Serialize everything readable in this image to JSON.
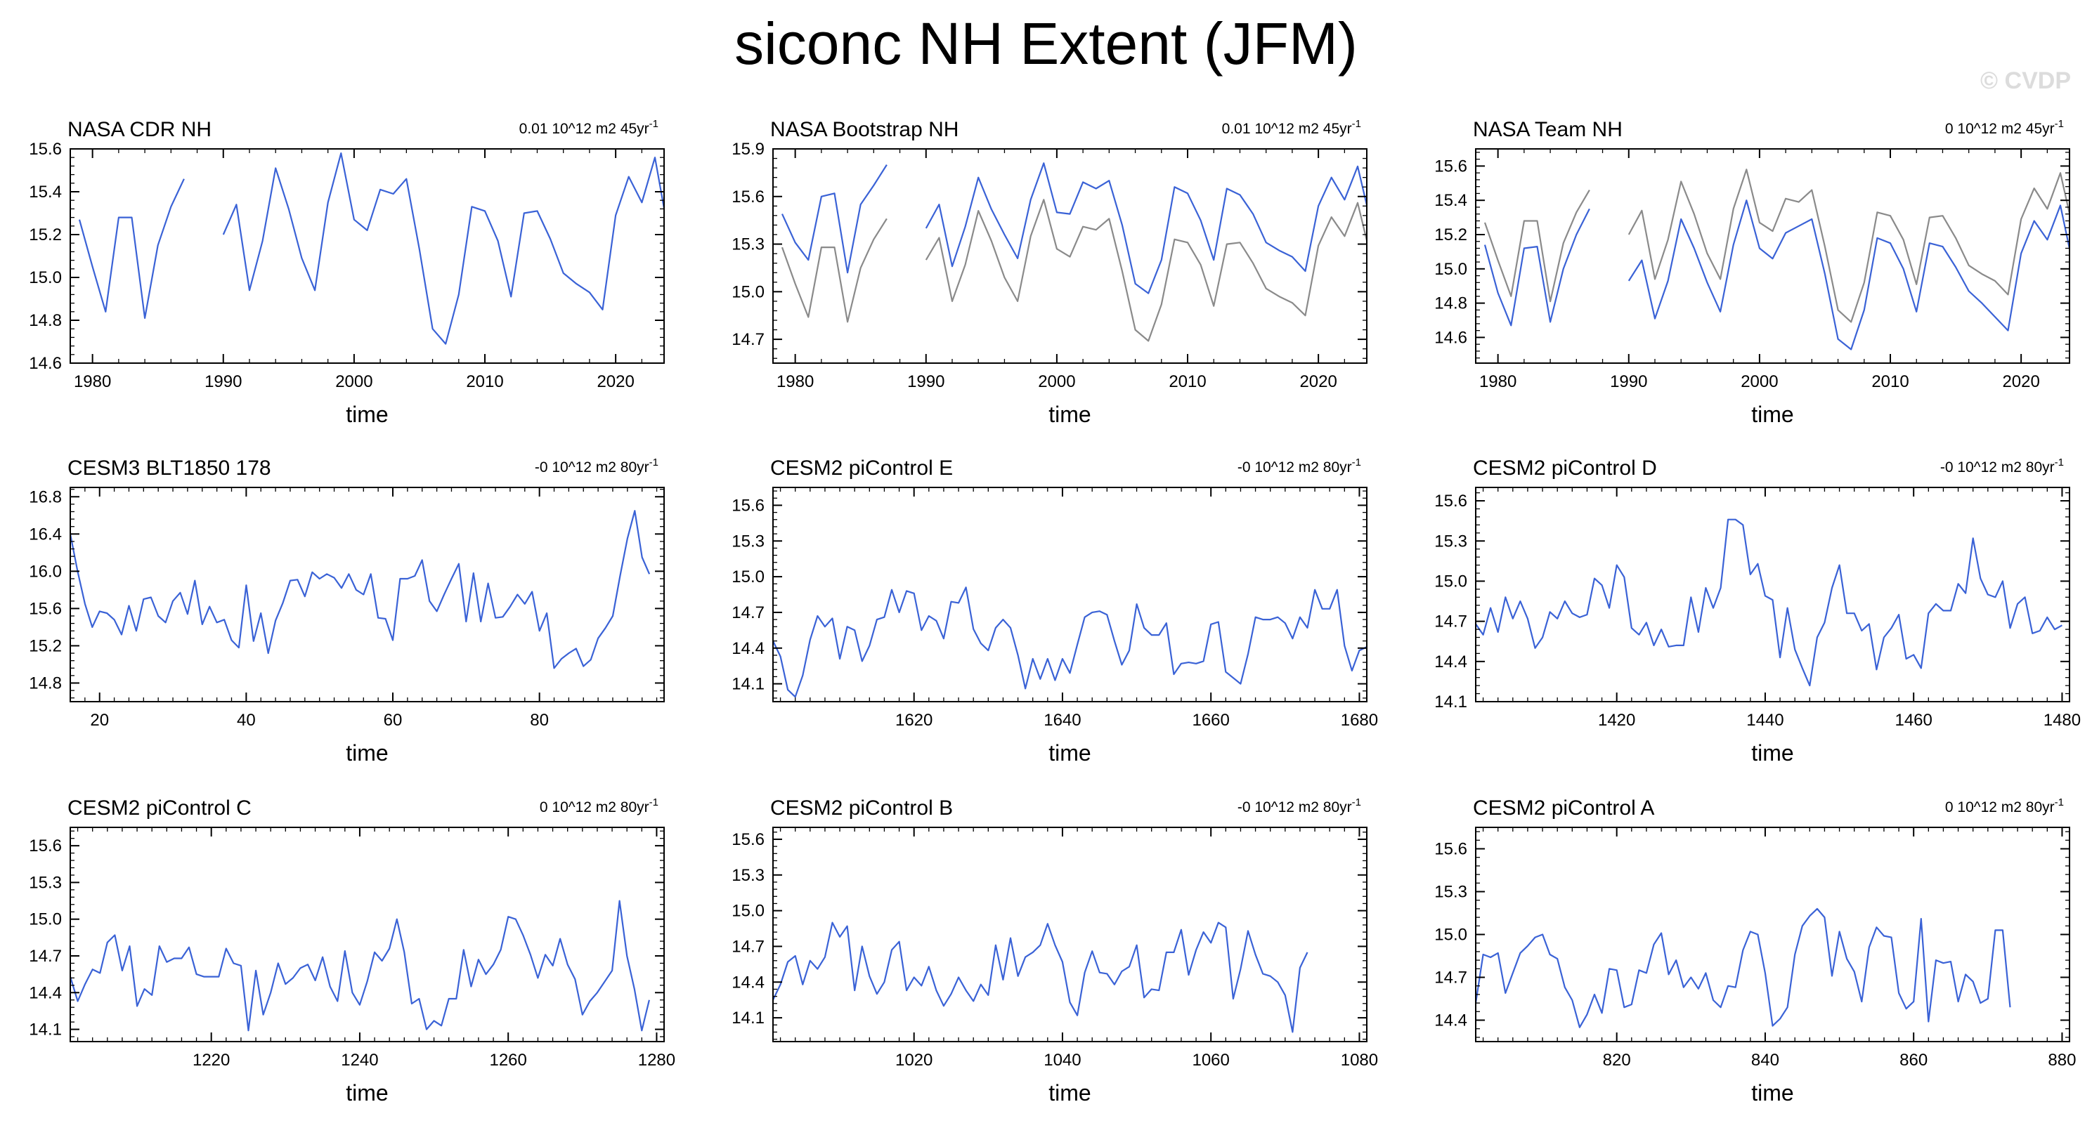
{
  "figure": {
    "title": "siconc NH Extent (JFM)",
    "watermark": "© CVDP"
  },
  "colors": {
    "model": "#3a62d6",
    "obs": "#8a8a8a",
    "axis": "#000000"
  },
  "chart_data": [
    {
      "type": "line",
      "title": "NASA CDR NH",
      "trend_label": "0.01 10^12 m2 45yr",
      "trend_sup": "-1",
      "xlabel": "time",
      "xlim": [
        1978.3,
        2023.7
      ],
      "ylim": [
        14.6,
        15.6
      ],
      "xticks": [
        1980,
        1990,
        2000,
        2010,
        2020
      ],
      "yticks": [
        14.6,
        14.8,
        15.0,
        15.2,
        15.4,
        15.6
      ],
      "ytick_labels": [
        "14.6",
        "14.8",
        "15.0",
        "15.2",
        "15.4",
        "15.6"
      ],
      "x_start": 1979,
      "series": [
        {
          "role": "model",
          "values": [
            15.27,
            15.05,
            14.84,
            15.28,
            15.28,
            14.81,
            15.15,
            15.33,
            15.46,
            null,
            null,
            15.2,
            15.34,
            14.94,
            15.17,
            15.51,
            15.32,
            15.09,
            14.94,
            15.35,
            15.58,
            15.27,
            15.22,
            15.41,
            15.39,
            15.46,
            15.13,
            14.76,
            14.69,
            14.92,
            15.33,
            15.31,
            15.17,
            14.91,
            15.3,
            15.31,
            15.18,
            15.02,
            14.97,
            14.93,
            14.85,
            15.29,
            15.47,
            15.35,
            15.56,
            15.22
          ]
        }
      ]
    },
    {
      "type": "line",
      "title": "NASA Bootstrap NH",
      "trend_label": "0.01 10^12 m2 45yr",
      "trend_sup": "-1",
      "xlabel": "time",
      "xlim": [
        1978.3,
        2023.7
      ],
      "ylim": [
        14.55,
        15.9
      ],
      "xticks": [
        1980,
        1990,
        2000,
        2010,
        2020
      ],
      "yticks": [
        14.7,
        15.0,
        15.3,
        15.6,
        15.9
      ],
      "ytick_labels": [
        "14.7",
        "15.0",
        "15.3",
        "15.6",
        "15.9"
      ],
      "x_start": 1979,
      "series": [
        {
          "role": "model",
          "values": [
            15.49,
            15.31,
            15.2,
            15.6,
            15.62,
            15.12,
            15.55,
            15.67,
            15.8,
            null,
            null,
            15.4,
            15.55,
            15.16,
            15.41,
            15.72,
            15.52,
            15.36,
            15.21,
            15.58,
            15.81,
            15.5,
            15.49,
            15.69,
            15.65,
            15.7,
            15.42,
            15.05,
            14.99,
            15.2,
            15.66,
            15.62,
            15.45,
            15.2,
            15.65,
            15.61,
            15.49,
            15.31,
            15.26,
            15.22,
            15.13,
            15.54,
            15.72,
            15.58,
            15.79,
            15.44
          ]
        },
        {
          "role": "obs",
          "values": [
            15.28,
            15.05,
            14.84,
            15.28,
            15.28,
            14.81,
            15.15,
            15.33,
            15.46,
            null,
            null,
            15.2,
            15.34,
            14.94,
            15.17,
            15.51,
            15.32,
            15.09,
            14.94,
            15.35,
            15.58,
            15.27,
            15.22,
            15.41,
            15.39,
            15.46,
            15.13,
            14.76,
            14.69,
            14.92,
            15.33,
            15.31,
            15.17,
            14.91,
            15.3,
            15.31,
            15.18,
            15.02,
            14.97,
            14.93,
            14.85,
            15.29,
            15.47,
            15.35,
            15.56,
            15.22
          ]
        }
      ]
    },
    {
      "type": "line",
      "title": "NASA Team NH",
      "trend_label": "0 10^12 m2 45yr",
      "trend_sup": "-1",
      "xlabel": "time",
      "xlim": [
        1978.3,
        2023.7
      ],
      "ylim": [
        14.45,
        15.7
      ],
      "xticks": [
        1980,
        1990,
        2000,
        2010,
        2020
      ],
      "yticks": [
        14.6,
        14.8,
        15.0,
        15.2,
        15.4,
        15.6
      ],
      "ytick_labels": [
        "14.6",
        "14.8",
        "15.0",
        "15.2",
        "15.4",
        "15.6"
      ],
      "x_start": 1979,
      "series": [
        {
          "role": "model",
          "values": [
            15.14,
            14.86,
            14.67,
            15.12,
            15.13,
            14.69,
            15.0,
            15.2,
            15.35,
            null,
            null,
            14.93,
            15.05,
            14.71,
            14.93,
            15.29,
            15.12,
            14.92,
            14.75,
            15.14,
            15.4,
            15.12,
            15.06,
            15.21,
            15.25,
            15.29,
            14.97,
            14.59,
            14.53,
            14.76,
            15.18,
            15.15,
            15.0,
            14.75,
            15.15,
            15.13,
            15.01,
            14.87,
            14.8,
            14.72,
            14.64,
            15.09,
            15.28,
            15.17,
            15.37,
            15.01
          ]
        },
        {
          "role": "obs",
          "values": [
            15.27,
            15.05,
            14.84,
            15.28,
            15.28,
            14.81,
            15.15,
            15.33,
            15.46,
            null,
            null,
            15.2,
            15.34,
            14.94,
            15.17,
            15.51,
            15.32,
            15.09,
            14.94,
            15.35,
            15.58,
            15.27,
            15.22,
            15.41,
            15.39,
            15.46,
            15.13,
            14.76,
            14.69,
            14.92,
            15.33,
            15.31,
            15.17,
            14.91,
            15.3,
            15.31,
            15.18,
            15.02,
            14.97,
            14.93,
            14.85,
            15.29,
            15.47,
            15.35,
            15.56,
            15.22
          ]
        }
      ]
    },
    {
      "type": "line",
      "title": "CESM3 BLT1850 178",
      "trend_label": "-0 10^12 m2 80yr",
      "trend_sup": "-1",
      "xlabel": "time",
      "xlim": [
        16,
        97
      ],
      "ylim": [
        14.6,
        16.9
      ],
      "xticks": [
        20,
        40,
        60,
        80
      ],
      "yticks": [
        14.8,
        15.2,
        15.6,
        16.0,
        16.4,
        16.8
      ],
      "ytick_labels": [
        "14.8",
        "15.2",
        "15.6",
        "16.0",
        "16.4",
        "16.8"
      ],
      "x_start": 16,
      "series": [
        {
          "role": "model",
          "values": [
            16.4,
            16.0,
            15.65,
            15.4,
            15.57,
            15.55,
            15.48,
            15.32,
            15.63,
            15.36,
            15.7,
            15.72,
            15.52,
            15.45,
            15.68,
            15.77,
            15.54,
            15.9,
            15.43,
            15.62,
            15.45,
            15.48,
            15.26,
            15.18,
            15.85,
            15.25,
            15.55,
            15.12,
            15.47,
            15.66,
            15.9,
            15.91,
            15.73,
            15.99,
            15.92,
            15.97,
            15.93,
            15.82,
            15.97,
            15.8,
            15.75,
            15.97,
            15.5,
            15.49,
            15.26,
            15.92,
            15.92,
            15.95,
            16.12,
            15.68,
            15.57,
            15.75,
            15.92,
            16.08,
            15.46,
            15.98,
            15.46,
            15.87,
            15.5,
            15.51,
            15.62,
            15.75,
            15.65,
            15.78,
            15.36,
            15.55,
            14.96,
            15.06,
            15.12,
            15.17,
            14.98,
            15.05,
            15.28,
            15.39,
            15.52,
            15.95,
            16.35,
            16.65,
            16.15,
            15.97
          ]
        }
      ]
    },
    {
      "type": "line",
      "title": "CESM2 piControl E",
      "trend_label": "-0 10^12 m2 80yr",
      "trend_sup": "-1",
      "xlabel": "time",
      "xlim": [
        1601,
        1681
      ],
      "ylim": [
        13.95,
        15.75
      ],
      "xticks": [
        1620,
        1640,
        1660,
        1680
      ],
      "yticks": [
        14.1,
        14.4,
        14.7,
        15.0,
        15.3,
        15.6
      ],
      "ytick_labels": [
        "14.1",
        "14.4",
        "14.7",
        "15.0",
        "15.3",
        "15.6"
      ],
      "x_start": 1601,
      "series": [
        {
          "role": "model",
          "values": [
            14.46,
            14.33,
            14.05,
            13.99,
            14.17,
            14.47,
            14.67,
            14.58,
            14.65,
            14.31,
            14.58,
            14.55,
            14.29,
            14.42,
            14.64,
            14.66,
            14.89,
            14.7,
            14.88,
            14.86,
            14.55,
            14.67,
            14.63,
            14.48,
            14.79,
            14.78,
            14.91,
            14.56,
            14.44,
            14.38,
            14.57,
            14.64,
            14.57,
            14.34,
            14.06,
            14.31,
            14.14,
            14.31,
            14.13,
            14.31,
            14.19,
            14.43,
            14.66,
            14.7,
            14.71,
            14.68,
            14.46,
            14.26,
            14.38,
            14.77,
            14.57,
            14.51,
            14.51,
            14.61,
            14.18,
            14.27,
            14.28,
            14.27,
            14.29,
            14.6,
            14.62,
            14.2,
            14.15,
            14.1,
            14.35,
            14.66,
            14.64,
            14.64,
            14.66,
            14.61,
            14.48,
            14.66,
            14.57,
            14.89,
            14.73,
            14.73,
            14.89,
            14.42,
            14.21,
            14.38,
            14.41
          ]
        }
      ]
    },
    {
      "type": "line",
      "title": "CESM2 piControl D",
      "trend_label": "-0 10^12 m2 80yr",
      "trend_sup": "-1",
      "xlabel": "time",
      "xlim": [
        1401,
        1481
      ],
      "ylim": [
        14.1,
        15.7
      ],
      "xticks": [
        1420,
        1440,
        1460,
        1480
      ],
      "yticks": [
        14.1,
        14.4,
        14.7,
        15.0,
        15.3,
        15.6
      ],
      "ytick_labels": [
        "14.1",
        "14.4",
        "14.7",
        "15.0",
        "15.3",
        "15.6"
      ],
      "x_start": 1401,
      "series": [
        {
          "role": "model",
          "values": [
            14.68,
            14.6,
            14.8,
            14.62,
            14.88,
            14.72,
            14.85,
            14.72,
            14.5,
            14.58,
            14.77,
            14.72,
            14.85,
            14.76,
            14.73,
            14.75,
            15.02,
            14.97,
            14.8,
            15.12,
            15.03,
            14.65,
            14.6,
            14.69,
            14.52,
            14.64,
            14.51,
            14.52,
            14.52,
            14.88,
            14.62,
            14.95,
            14.8,
            14.95,
            15.46,
            15.46,
            15.42,
            15.05,
            15.13,
            14.89,
            14.86,
            14.43,
            14.8,
            14.49,
            14.35,
            14.22,
            14.58,
            14.69,
            14.95,
            15.12,
            14.76,
            14.76,
            14.63,
            14.68,
            14.34,
            14.58,
            14.65,
            14.75,
            14.42,
            14.45,
            14.35,
            14.76,
            14.83,
            14.78,
            14.78,
            14.98,
            14.91,
            15.32,
            15.02,
            14.9,
            14.88,
            15.0,
            14.65,
            14.83,
            14.88,
            14.61,
            14.63,
            14.73,
            14.64,
            14.67
          ]
        }
      ]
    },
    {
      "type": "line",
      "title": "CESM2 piControl C",
      "trend_label": "0 10^12 m2 80yr",
      "trend_sup": "-1",
      "xlabel": "time",
      "xlim": [
        1201,
        1281
      ],
      "ylim": [
        14.0,
        15.75
      ],
      "xticks": [
        1220,
        1240,
        1260,
        1280
      ],
      "yticks": [
        14.1,
        14.4,
        14.7,
        15.0,
        15.3,
        15.6
      ],
      "ytick_labels": [
        "14.1",
        "14.4",
        "14.7",
        "15.0",
        "15.3",
        "15.6"
      ],
      "x_start": 1201,
      "series": [
        {
          "role": "model",
          "values": [
            14.53,
            14.33,
            14.47,
            14.59,
            14.56,
            14.81,
            14.87,
            14.58,
            14.78,
            14.29,
            14.43,
            14.38,
            14.78,
            14.65,
            14.68,
            14.68,
            14.77,
            14.55,
            14.53,
            14.53,
            14.53,
            14.76,
            14.64,
            14.62,
            14.09,
            14.58,
            14.22,
            14.4,
            14.64,
            14.47,
            14.52,
            14.6,
            14.63,
            14.5,
            14.69,
            14.45,
            14.33,
            14.74,
            14.4,
            14.3,
            14.49,
            14.73,
            14.66,
            14.76,
            15.0,
            14.73,
            14.31,
            14.35,
            14.1,
            14.17,
            14.13,
            14.35,
            14.35,
            14.75,
            14.45,
            14.67,
            14.55,
            14.63,
            14.75,
            15.02,
            15.0,
            14.87,
            14.71,
            14.52,
            14.71,
            14.62,
            14.84,
            14.63,
            14.51,
            14.22,
            14.33,
            14.4,
            14.49,
            14.58,
            15.15,
            14.7,
            14.43,
            14.09,
            14.34
          ]
        }
      ]
    },
    {
      "type": "line",
      "title": "CESM2 piControl B",
      "trend_label": "-0 10^12 m2 80yr",
      "trend_sup": "-1",
      "xlabel": "time",
      "xlim": [
        1001,
        1081
      ],
      "ylim": [
        13.9,
        15.7
      ],
      "xticks": [
        1020,
        1040,
        1060,
        1080
      ],
      "yticks": [
        14.1,
        14.4,
        14.7,
        15.0,
        15.3,
        15.6
      ],
      "ytick_labels": [
        "14.1",
        "14.4",
        "14.7",
        "15.0",
        "15.3",
        "15.6"
      ],
      "x_start": 1001,
      "series": [
        {
          "role": "model",
          "values": [
            14.25,
            14.38,
            14.57,
            14.62,
            14.38,
            14.58,
            14.51,
            14.61,
            14.9,
            14.78,
            14.87,
            14.33,
            14.7,
            14.45,
            14.3,
            14.4,
            14.67,
            14.74,
            14.33,
            14.44,
            14.37,
            14.53,
            14.33,
            14.2,
            14.3,
            14.44,
            14.33,
            14.24,
            14.38,
            14.29,
            14.71,
            14.42,
            14.77,
            14.45,
            14.61,
            14.65,
            14.71,
            14.89,
            14.71,
            14.57,
            14.23,
            14.12,
            14.48,
            14.66,
            14.48,
            14.47,
            14.38,
            14.49,
            14.53,
            14.71,
            14.27,
            14.34,
            14.33,
            14.65,
            14.65,
            14.84,
            14.46,
            14.67,
            14.82,
            14.73,
            14.9,
            14.86,
            14.26,
            14.51,
            14.83,
            14.63,
            14.47,
            14.45,
            14.4,
            14.29,
            13.98,
            14.52,
            14.65
          ]
        }
      ]
    },
    {
      "type": "line",
      "title": "CESM2 piControl A",
      "trend_label": "0 10^12 m2 80yr",
      "trend_sup": "-1",
      "xlabel": "time",
      "xlim": [
        801,
        881
      ],
      "ylim": [
        14.25,
        15.75
      ],
      "xticks": [
        820,
        840,
        860,
        880
      ],
      "yticks": [
        14.4,
        14.7,
        15.0,
        15.3,
        15.6
      ],
      "ytick_labels": [
        "14.4",
        "14.7",
        "15.0",
        "15.3",
        "15.6"
      ],
      "x_start": 801,
      "series": [
        {
          "role": "model",
          "values": [
            14.52,
            14.86,
            14.84,
            14.87,
            14.59,
            14.73,
            14.87,
            14.92,
            14.98,
            15.0,
            14.86,
            14.83,
            14.63,
            14.54,
            14.35,
            14.44,
            14.58,
            14.45,
            14.76,
            14.75,
            14.49,
            14.51,
            14.75,
            14.73,
            14.93,
            15.01,
            14.72,
            14.82,
            14.63,
            14.7,
            14.62,
            14.73,
            14.54,
            14.49,
            14.64,
            14.63,
            14.89,
            15.02,
            15.0,
            14.73,
            14.36,
            14.41,
            14.49,
            14.86,
            15.06,
            15.13,
            15.18,
            15.12,
            14.71,
            15.02,
            14.83,
            14.74,
            14.53,
            14.91,
            15.05,
            14.99,
            14.98,
            14.59,
            14.48,
            14.53,
            15.11,
            14.39,
            14.82,
            14.8,
            14.81,
            14.53,
            14.72,
            14.67,
            14.52,
            14.55,
            15.03,
            15.03,
            14.49
          ]
        }
      ]
    }
  ]
}
